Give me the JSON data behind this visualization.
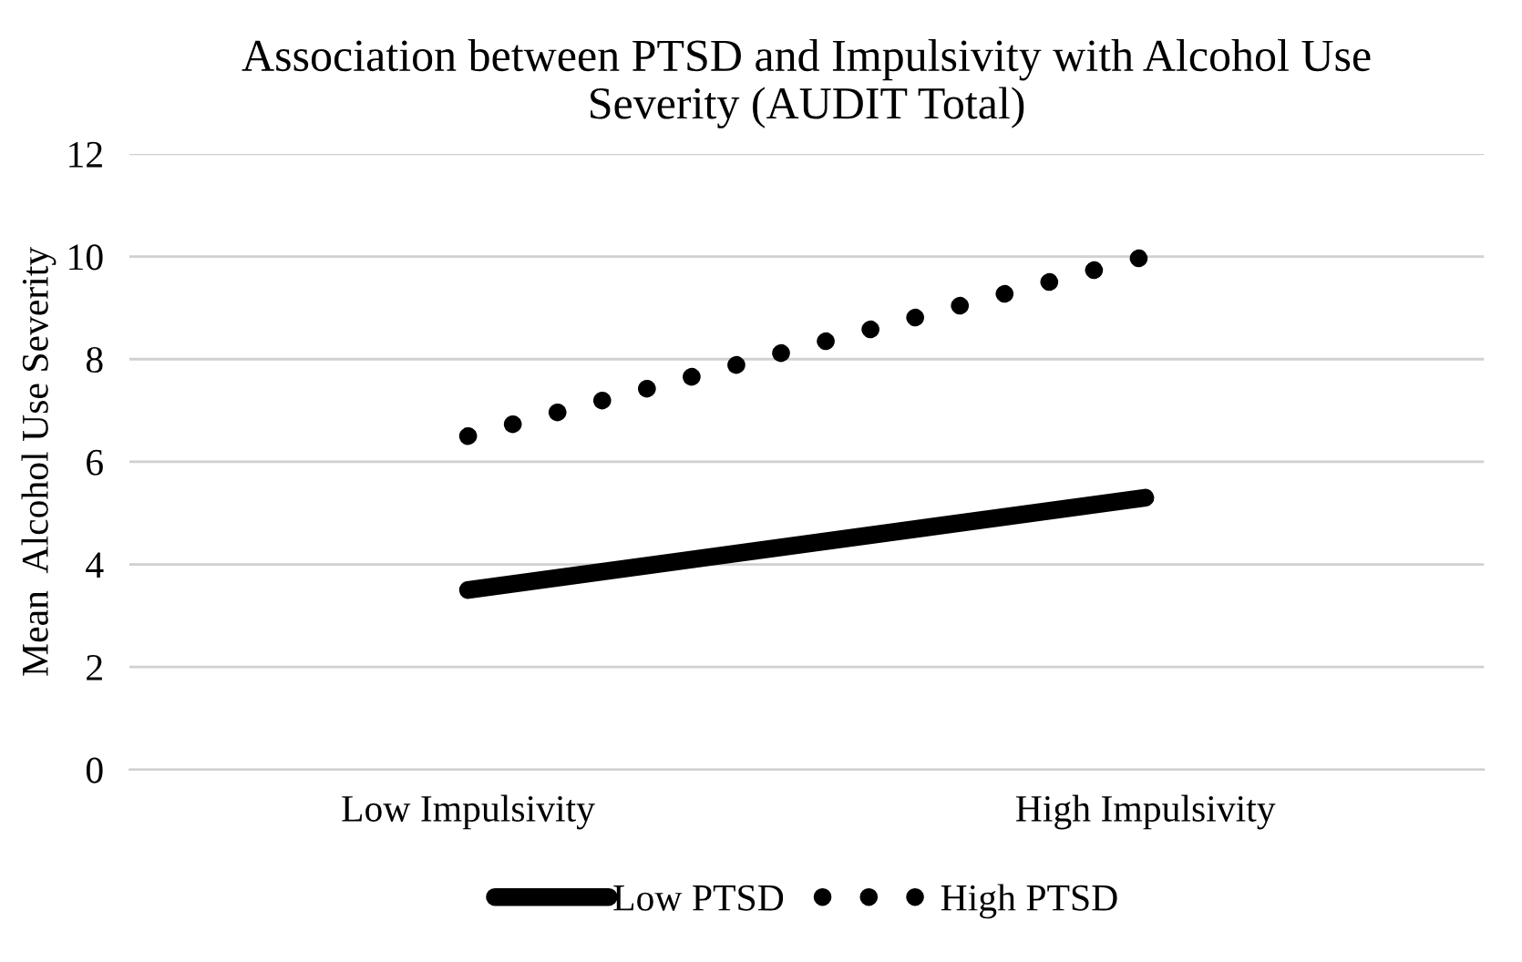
{
  "chart_data": {
    "type": "line",
    "title": "Association between PTSD and Impulsivity with Alcohol Use\nSeverity (AUDIT Total)",
    "ylabel": "Mean  Alcohol Use Severity",
    "categories": [
      "Low Impulsivity",
      "High Impulsivity"
    ],
    "series": [
      {
        "name": "Low PTSD",
        "color": "#000000",
        "values": [
          3.5,
          5.3
        ],
        "line_style": "solid"
      },
      {
        "name": "High PTSD",
        "color": "#000000",
        "values": [
          6.5,
          10.0
        ],
        "line_style": "dotted"
      }
    ],
    "ylim": [
      0,
      12
    ],
    "yticks": [
      0,
      2,
      4,
      6,
      8,
      10,
      12
    ],
    "grid": "y",
    "legend": "bottom",
    "marker": "none"
  }
}
